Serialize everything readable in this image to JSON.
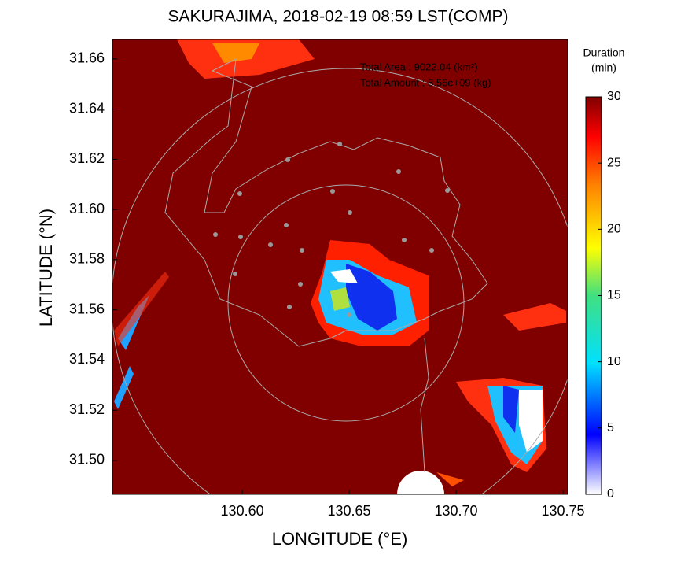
{
  "chart_data": {
    "type": "heatmap",
    "title": "SAKURAJIMA, 2018-02-19 08:59 LST(COMP)",
    "xlabel": "LONGITUDE (°E)",
    "ylabel": "LATITUDE (°N)",
    "xlim": [
      130.5393,
      130.7522
    ],
    "ylim": [
      31.4865,
      31.6678
    ],
    "xticks": [
      {
        "value": 130.6,
        "label": "130.60"
      },
      {
        "value": 130.65,
        "label": "130.65"
      },
      {
        "value": 130.7,
        "label": "130.70"
      },
      {
        "value": 130.75,
        "label": "130.75"
      }
    ],
    "yticks": [
      {
        "value": 31.5,
        "label": "31.50"
      },
      {
        "value": 31.52,
        "label": "31.52"
      },
      {
        "value": 31.54,
        "label": "31.54"
      },
      {
        "value": 31.56,
        "label": "31.56"
      },
      {
        "value": 31.58,
        "label": "31.58"
      },
      {
        "value": 31.6,
        "label": "31.60"
      },
      {
        "value": 31.62,
        "label": "31.62"
      },
      {
        "value": 31.64,
        "label": "31.64"
      },
      {
        "value": 31.66,
        "label": "31.66"
      }
    ],
    "annotations": [
      "Total Area   : 9022.04 (km²)",
      "Total Amount : 8.56e+09 (kg)"
    ],
    "colorbar": {
      "label": [
        "Duration",
        "(min)"
      ],
      "lim": [
        0,
        30
      ],
      "ticks": [
        0,
        5,
        10,
        15,
        20,
        25,
        30
      ]
    }
  }
}
